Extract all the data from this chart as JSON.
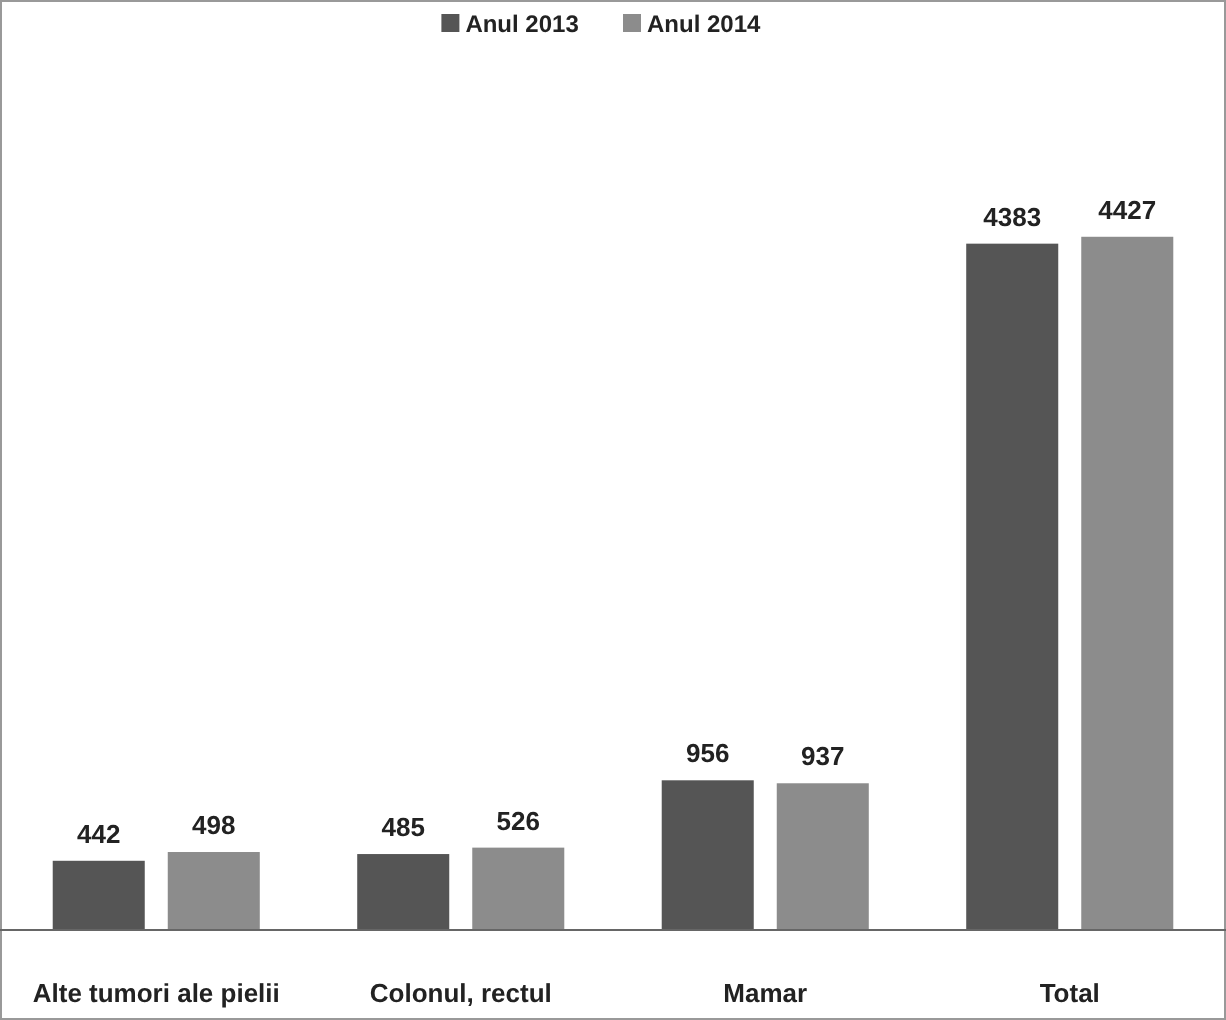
{
  "chart_data": {
    "type": "bar",
    "categories": [
      "Alte tumori ale pielii",
      "Colonul, rectul",
      "Mamar",
      "Total"
    ],
    "series": [
      {
        "name": "Anul 2013",
        "color": "#555555",
        "values": [
          442,
          485,
          956,
          4383
        ]
      },
      {
        "name": "Anul 2014",
        "color": "#8c8c8c",
        "values": [
          498,
          526,
          937,
          4427
        ]
      }
    ],
    "data_labels": true,
    "legend": "top"
  }
}
